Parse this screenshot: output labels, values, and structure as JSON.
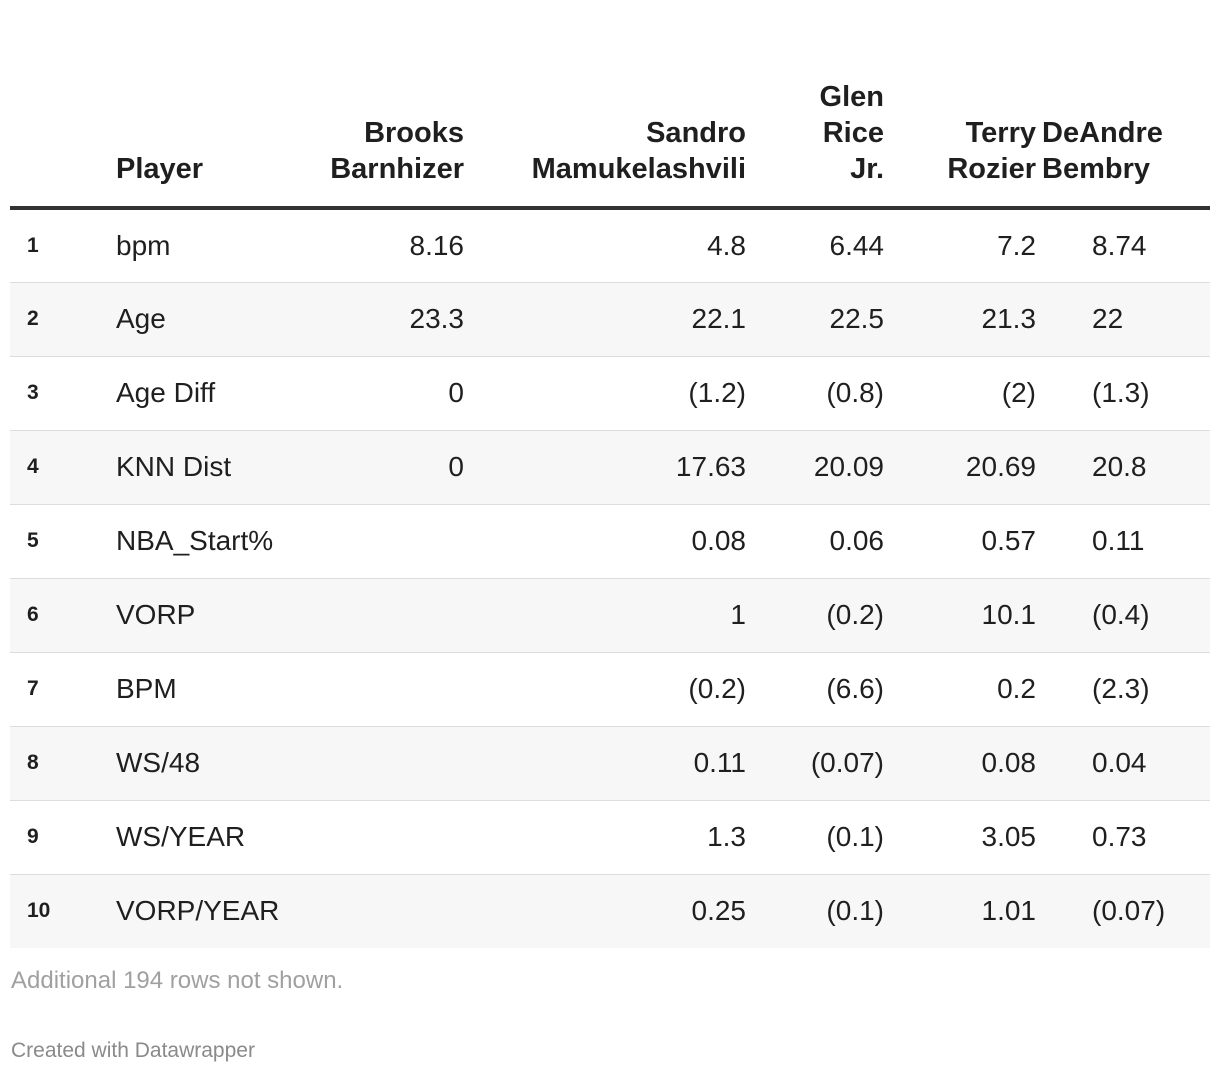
{
  "chart_data": {
    "type": "table",
    "columns": [
      {
        "label": "",
        "lines": [
          ""
        ]
      },
      {
        "label": "Player",
        "lines": [
          "Player"
        ]
      },
      {
        "label": "Brooks Barnhizer",
        "lines": [
          "Brooks",
          "Barnhizer"
        ]
      },
      {
        "label": "Sandro Mamukelashvili",
        "lines": [
          "Sandro",
          "Mamukelashvili"
        ]
      },
      {
        "label": "Glen Rice Jr.",
        "lines": [
          "Glen",
          "Rice",
          "Jr."
        ]
      },
      {
        "label": "Terry Rozier",
        "lines": [
          "Terry",
          "Rozier"
        ]
      },
      {
        "label": "DeAndre Bembry",
        "lines": [
          "DeAndre",
          "Bembry"
        ]
      }
    ],
    "rows": [
      {
        "index": "1",
        "player": "bpm",
        "values": [
          "8.16",
          "4.8",
          "6.44",
          "7.2",
          "8.74"
        ]
      },
      {
        "index": "2",
        "player": "Age",
        "values": [
          "23.3",
          "22.1",
          "22.5",
          "21.3",
          "22"
        ]
      },
      {
        "index": "3",
        "player": "Age Diff",
        "values": [
          "0",
          "(1.2)",
          "(0.8)",
          "(2)",
          "(1.3)"
        ]
      },
      {
        "index": "4",
        "player": "KNN Dist",
        "values": [
          "0",
          "17.63",
          "20.09",
          "20.69",
          "20.8"
        ]
      },
      {
        "index": "5",
        "player": "NBA_Start%",
        "values": [
          "",
          "0.08",
          "0.06",
          "0.57",
          "0.11"
        ]
      },
      {
        "index": "6",
        "player": "VORP",
        "values": [
          "",
          "1",
          "(0.2)",
          "10.1",
          "(0.4)"
        ]
      },
      {
        "index": "7",
        "player": "BPM",
        "values": [
          "",
          "(0.2)",
          "(6.6)",
          "0.2",
          "(2.3)"
        ]
      },
      {
        "index": "8",
        "player": "WS/48",
        "values": [
          "",
          "0.11",
          "(0.07)",
          "0.08",
          "0.04"
        ]
      },
      {
        "index": "9",
        "player": "WS/YEAR",
        "values": [
          "",
          "1.3",
          "(0.1)",
          "3.05",
          "0.73"
        ]
      },
      {
        "index": "10",
        "player": "VORP/YEAR",
        "values": [
          "",
          "0.25",
          "(0.1)",
          "1.01",
          "(0.07)"
        ]
      }
    ]
  },
  "footer": {
    "notes": "Additional 194 rows not shown.",
    "credit": "Created with Datawrapper"
  }
}
